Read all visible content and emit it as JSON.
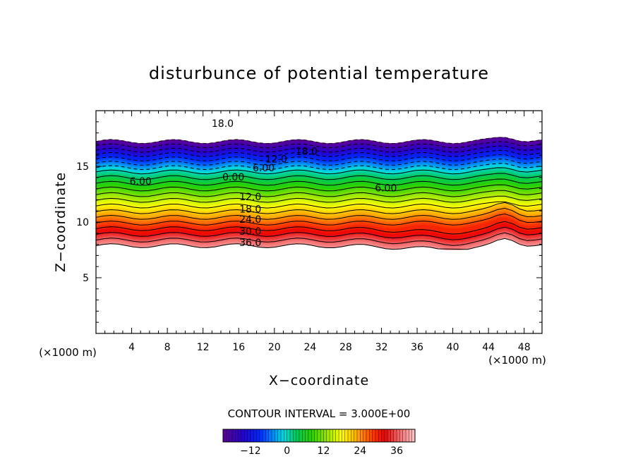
{
  "chart_data": {
    "type": "contour",
    "title": "disturbunce of potential temperature",
    "xlabel": "X−coordinate",
    "ylabel": "Z−coordinate",
    "x_unit": "(×1000 m)",
    "y_unit": "(×1000 m)",
    "xlim": [
      0,
      50
    ],
    "ylim": [
      0,
      20
    ],
    "xticks": [
      4,
      8,
      12,
      16,
      20,
      24,
      28,
      32,
      36,
      40,
      44,
      48
    ],
    "yticks": [
      5,
      10,
      15
    ],
    "contour_interval_text": "CONTOUR INTERVAL = 3.000E+00",
    "levels": [
      -21,
      -18,
      -15,
      -12,
      -9,
      -6,
      -3,
      0,
      3,
      6,
      9,
      12,
      15,
      18,
      21,
      24,
      27,
      30,
      33,
      36,
      39
    ],
    "contour_labels": [
      {
        "text": "18.0",
        "x": 14.2,
        "y": 18.8
      },
      {
        "text": "18.0",
        "x": 23.6,
        "y": 16.3
      },
      {
        "text": "12.0",
        "x": 20.2,
        "y": 15.6
      },
      {
        "text": "6.00",
        "x": 18.8,
        "y": 14.8
      },
      {
        "text": "0.00",
        "x": 15.4,
        "y": 14.0
      },
      {
        "text": "6.00",
        "x": 5.0,
        "y": 13.6
      },
      {
        "text": "6.00",
        "x": 32.5,
        "y": 13.0
      },
      {
        "text": "12.0",
        "x": 17.3,
        "y": 12.2
      },
      {
        "text": "18.0",
        "x": 17.3,
        "y": 11.1
      },
      {
        "text": "24.0",
        "x": 17.3,
        "y": 10.2
      },
      {
        "text": "30.0",
        "x": 17.3,
        "y": 9.1
      },
      {
        "text": "36.0",
        "x": 17.3,
        "y": 8.1
      }
    ],
    "colorbar": {
      "range": [
        -21,
        42
      ],
      "ticks": [
        -12,
        0,
        12,
        24,
        36
      ],
      "tick_labels": [
        "−12",
        "0",
        "12",
        "24",
        "36"
      ]
    }
  }
}
